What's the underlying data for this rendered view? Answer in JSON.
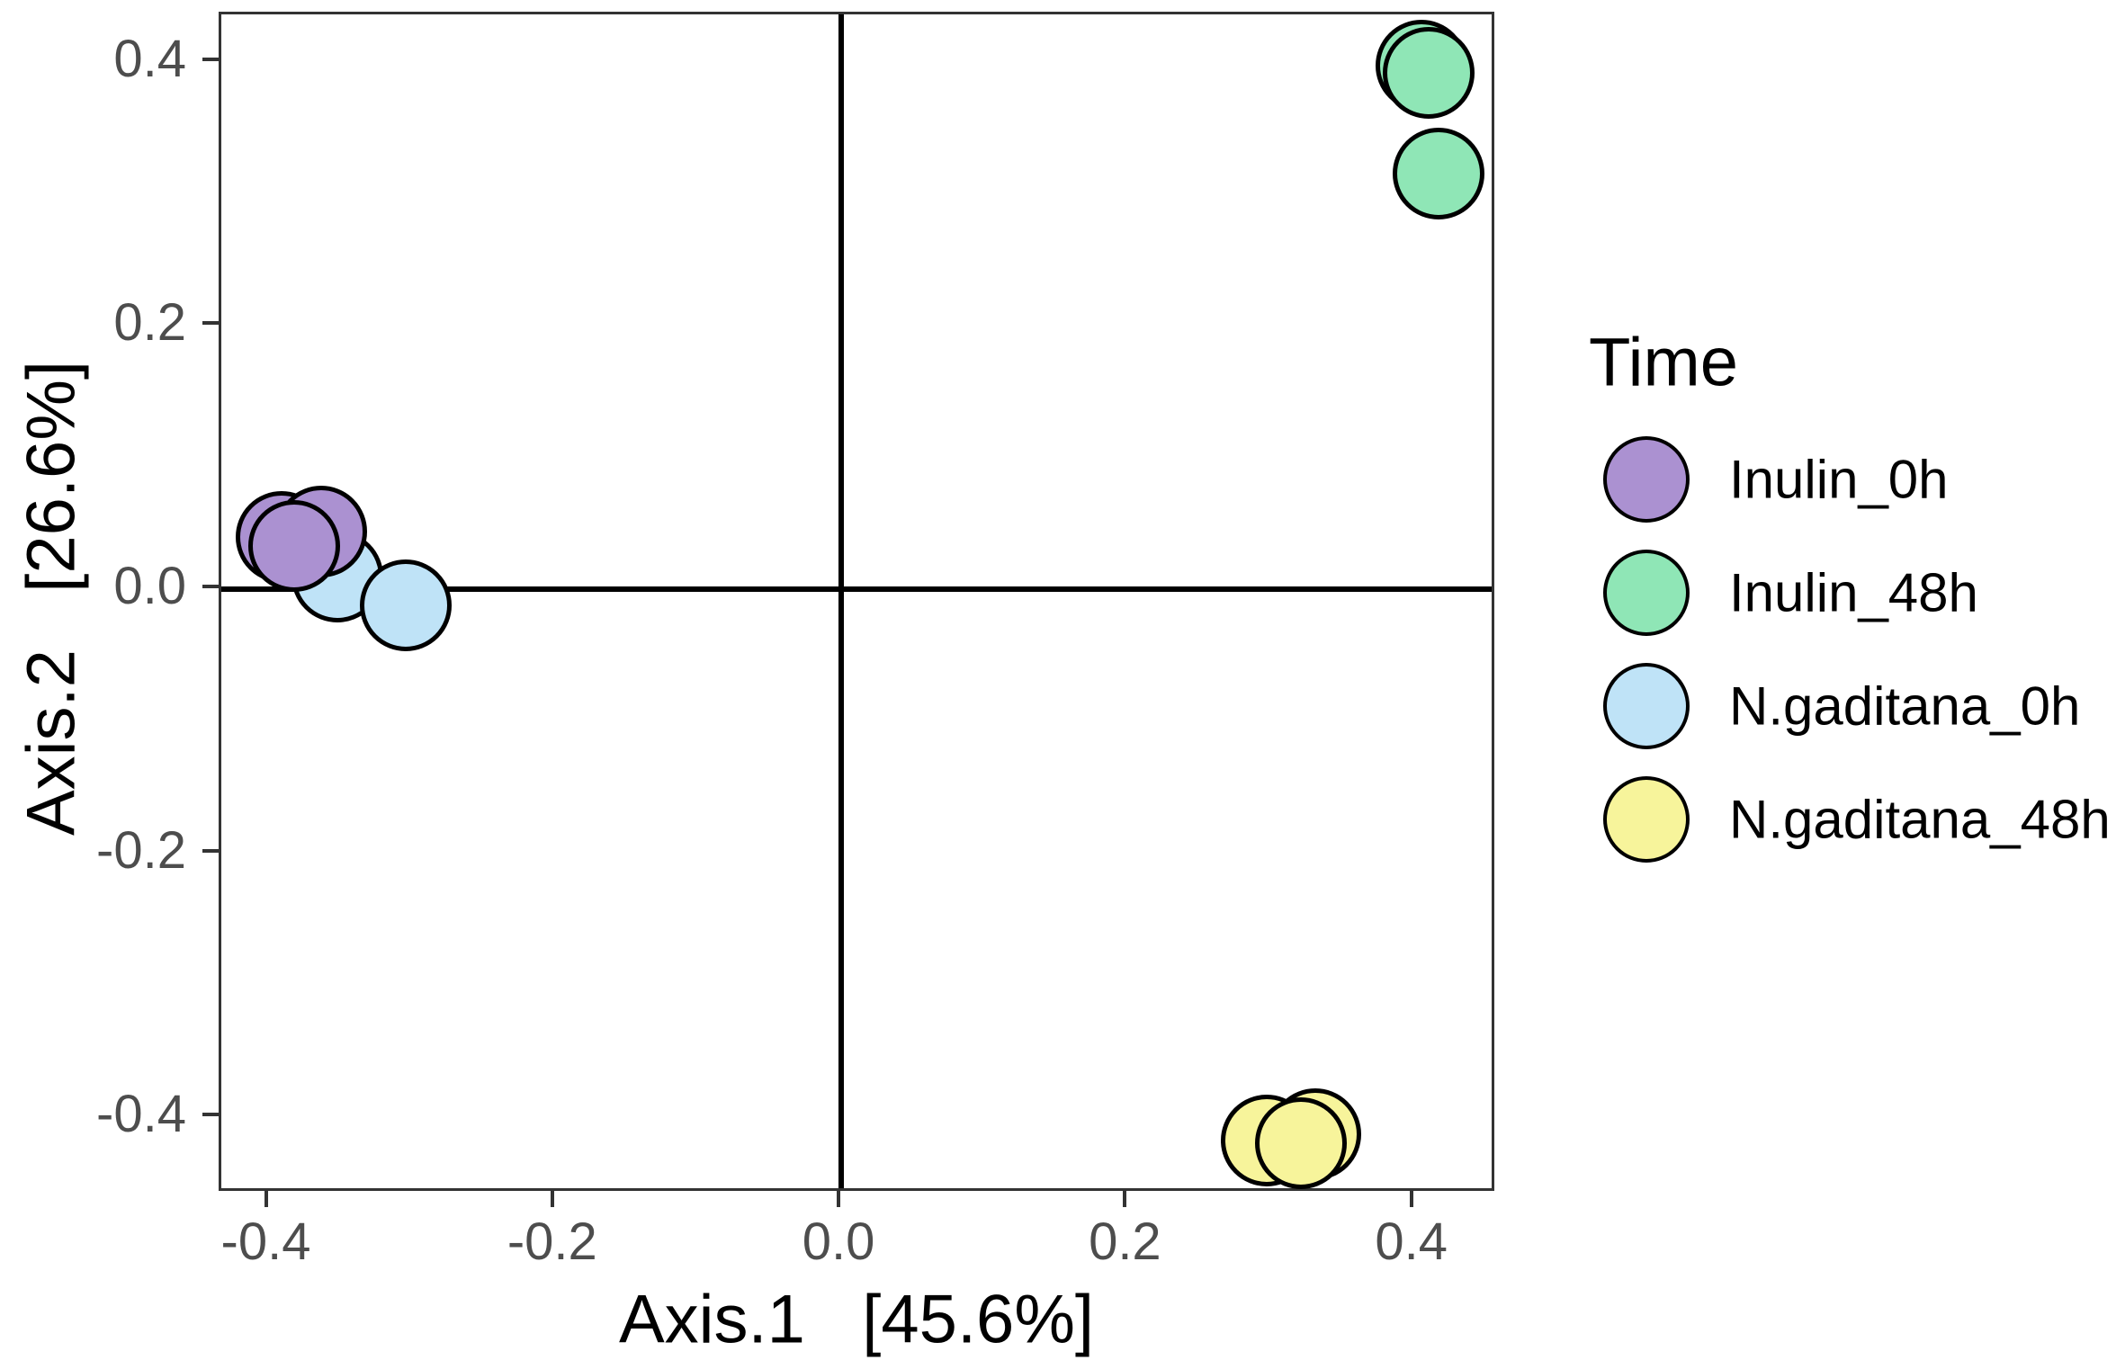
{
  "chart_data": {
    "type": "scatter",
    "title": "",
    "xlabel": "Axis.1   [45.6%]",
    "ylabel": "Axis.2   [26.6%]",
    "xlim": [
      -0.433,
      0.458
    ],
    "ylim": [
      -0.458,
      0.436
    ],
    "x_ticks": [
      -0.4,
      -0.2,
      0.0,
      0.2,
      0.4
    ],
    "y_ticks": [
      -0.4,
      -0.2,
      0.0,
      0.2,
      0.4
    ],
    "x_tick_labels": [
      "-0.4",
      "-0.2",
      "0.0",
      "0.2",
      "0.4"
    ],
    "y_tick_labels": [
      "-0.4",
      "-0.2",
      "0.0",
      "0.2",
      "0.4"
    ],
    "grid": false,
    "zero_lines": true,
    "legend_position": "right",
    "legend_title": "Time",
    "series": [
      {
        "name": "Inulin_0h",
        "color": "#AB91D1",
        "x": [
          -0.391,
          -0.363,
          -0.382
        ],
        "y": [
          0.04,
          0.044,
          0.033
        ]
      },
      {
        "name": "Inulin_48h",
        "color": "#8FE6B6",
        "x": [
          0.405,
          0.41,
          0.417
        ],
        "y": [
          0.397,
          0.392,
          0.315
        ]
      },
      {
        "name": "N.gaditana_0h",
        "color": "#BFE3F7",
        "x": [
          -0.352,
          -0.304
        ],
        "y": [
          0.01,
          -0.012
        ]
      },
      {
        "name": "N.gaditana_48h",
        "color": "#F7F49B",
        "x": [
          0.297,
          0.331,
          0.321
        ],
        "y": [
          -0.418,
          -0.413,
          -0.42
        ]
      }
    ],
    "points_draw_order": [
      {
        "group": "N.gaditana_0h",
        "x": -0.352,
        "y": 0.01
      },
      {
        "group": "Inulin_0h",
        "x": -0.391,
        "y": 0.04
      },
      {
        "group": "Inulin_0h",
        "x": -0.363,
        "y": 0.044
      },
      {
        "group": "Inulin_0h",
        "x": -0.382,
        "y": 0.033
      },
      {
        "group": "N.gaditana_0h",
        "x": -0.304,
        "y": -0.012
      },
      {
        "group": "Inulin_48h",
        "x": 0.405,
        "y": 0.397
      },
      {
        "group": "Inulin_48h",
        "x": 0.41,
        "y": 0.392
      },
      {
        "group": "Inulin_48h",
        "x": 0.417,
        "y": 0.315
      },
      {
        "group": "N.gaditana_48h",
        "x": 0.297,
        "y": -0.418
      },
      {
        "group": "N.gaditana_48h",
        "x": 0.331,
        "y": -0.413
      },
      {
        "group": "N.gaditana_48h",
        "x": 0.321,
        "y": -0.42
      }
    ]
  },
  "legend": {
    "title": "Time",
    "entries": [
      {
        "label": "Inulin_0h",
        "color": "#AB91D1"
      },
      {
        "label": "Inulin_48h",
        "color": "#8FE6B6"
      },
      {
        "label": "N.gaditana_0h",
        "color": "#BFE3F7"
      },
      {
        "label": "N.gaditana_48h",
        "color": "#F7F49B"
      }
    ]
  },
  "colors": {
    "tick_label": "#4d4d4d",
    "panel_border": "#333333",
    "zero_line": "#000000",
    "point_stroke": "#000000"
  }
}
